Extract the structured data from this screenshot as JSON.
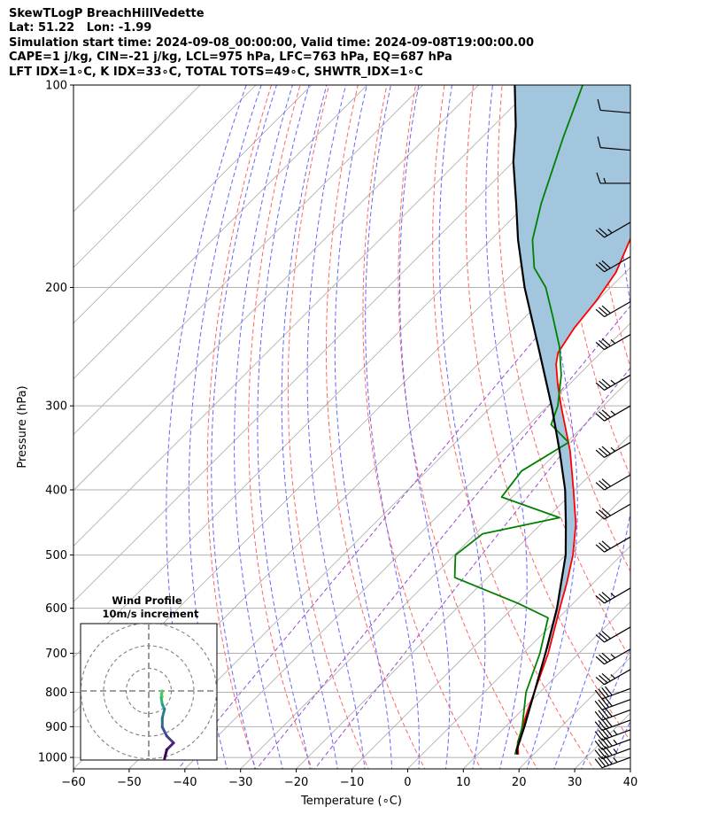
{
  "header": {
    "line1": "SkewTLogP BreachHillVedette",
    "line2": "Lat: 51.22   Lon: -1.99",
    "line3": "Simulation start time: 2024-09-08_00:00:00, Valid time: 2024-09-08T19:00:00.00",
    "line4": "CAPE=1 j/kg, CIN=-21 j/kg, LCL=975 hPa, LFC=763 hPa, EQ=687 hPa",
    "line5": "LFT IDX=1∘C, K IDX=33∘C, TOTAL TOTS=49∘C, SHWTR_IDX=1∘C"
  },
  "colors": {
    "temperature": "#ff0000",
    "dewpoint": "#008000",
    "parcel": "#000000",
    "cape_fill": "#a3c6df",
    "dry_adiabat": "#ff6666",
    "moist_adiabat": "#6666ff",
    "mixing_ratio": "#9b4dca",
    "isotherm": "#aaaaaa",
    "gridline": "#b0b0b0"
  },
  "chart_data": {
    "type": "skewt",
    "title": "SkewTLogP BreachHillVedette",
    "xlabel": "Temperature (∘C)",
    "ylabel": "Pressure (hPa)",
    "xlim": [
      -60,
      40
    ],
    "ylim": [
      1040,
      100
    ],
    "y_scale": "log",
    "x_ticks": [
      -60,
      -50,
      -40,
      -30,
      -20,
      -10,
      0,
      10,
      20,
      30,
      40
    ],
    "y_ticks": [
      100,
      200,
      300,
      400,
      500,
      600,
      700,
      800,
      900,
      1000
    ],
    "grid": true,
    "temperature": [
      {
        "p": 990,
        "t": 17.3
      },
      {
        "p": 950,
        "t": 15.0
      },
      {
        "p": 850,
        "t": 11.0
      },
      {
        "p": 800,
        "t": 9.0
      },
      {
        "p": 700,
        "t": 4.5
      },
      {
        "p": 600,
        "t": -1.5
      },
      {
        "p": 550,
        "t": -4.8
      },
      {
        "p": 500,
        "t": -8.7
      },
      {
        "p": 450,
        "t": -13.7
      },
      {
        "p": 400,
        "t": -20.3
      },
      {
        "p": 350,
        "t": -27.9
      },
      {
        "p": 300,
        "t": -37.6
      },
      {
        "p": 280,
        "t": -41.8
      },
      {
        "p": 260,
        "t": -46.0
      },
      {
        "p": 250,
        "t": -47.7
      },
      {
        "p": 230,
        "t": -49.2
      },
      {
        "p": 210,
        "t": -50.1
      },
      {
        "p": 190,
        "t": -51.7
      },
      {
        "p": 170,
        "t": -55.0
      },
      {
        "p": 150,
        "t": -58.8
      },
      {
        "p": 130,
        "t": -63.5
      },
      {
        "p": 120,
        "t": -66.6
      },
      {
        "p": 110,
        "t": -70.0
      },
      {
        "p": 100,
        "t": -73.2
      }
    ],
    "dewpoint": [
      {
        "p": 990,
        "t": 16.7
      },
      {
        "p": 900,
        "t": 13.0
      },
      {
        "p": 800,
        "t": 7.5
      },
      {
        "p": 700,
        "t": 3.0
      },
      {
        "p": 620,
        "t": -1.9
      },
      {
        "p": 590,
        "t": -9.9
      },
      {
        "p": 540,
        "t": -25.9
      },
      {
        "p": 500,
        "t": -29.8
      },
      {
        "p": 465,
        "t": -28.7
      },
      {
        "p": 440,
        "t": -17.8
      },
      {
        "p": 410,
        "t": -31.9
      },
      {
        "p": 375,
        "t": -33.0
      },
      {
        "p": 340,
        "t": -29.7
      },
      {
        "p": 320,
        "t": -36.0
      },
      {
        "p": 300,
        "t": -38.2
      },
      {
        "p": 270,
        "t": -43.1
      },
      {
        "p": 245,
        "t": -48.5
      },
      {
        "p": 220,
        "t": -55.4
      },
      {
        "p": 200,
        "t": -61.6
      },
      {
        "p": 187,
        "t": -67.2
      },
      {
        "p": 170,
        "t": -72.5
      },
      {
        "p": 150,
        "t": -77.5
      },
      {
        "p": 120,
        "t": -85.3
      },
      {
        "p": 100,
        "t": -91.3
      }
    ],
    "parcel": [
      {
        "p": 990,
        "t": 17.1
      },
      {
        "p": 975,
        "t": 16.2
      },
      {
        "p": 900,
        "t": 13.4
      },
      {
        "p": 800,
        "t": 9.0
      },
      {
        "p": 700,
        "t": 4.0
      },
      {
        "p": 600,
        "t": -2.0
      },
      {
        "p": 500,
        "t": -10.0
      },
      {
        "p": 450,
        "t": -15.5
      },
      {
        "p": 400,
        "t": -21.8
      },
      {
        "p": 350,
        "t": -29.8
      },
      {
        "p": 300,
        "t": -39.3
      },
      {
        "p": 250,
        "t": -51.0
      },
      {
        "p": 200,
        "t": -65.4
      },
      {
        "p": 170,
        "t": -75.1
      },
      {
        "p": 150,
        "t": -82.0
      },
      {
        "p": 130,
        "t": -90.0
      },
      {
        "p": 115,
        "t": -96.0
      },
      {
        "p": 100,
        "t": -103.5
      }
    ],
    "wind_barbs": [
      {
        "p": 1000,
        "speed_kt": 45,
        "dir_deg": 250
      },
      {
        "p": 970,
        "speed_kt": 45,
        "dir_deg": 250
      },
      {
        "p": 940,
        "speed_kt": 45,
        "dir_deg": 250
      },
      {
        "p": 910,
        "speed_kt": 45,
        "dir_deg": 250
      },
      {
        "p": 880,
        "speed_kt": 40,
        "dir_deg": 250
      },
      {
        "p": 850,
        "speed_kt": 40,
        "dir_deg": 250
      },
      {
        "p": 820,
        "speed_kt": 40,
        "dir_deg": 250
      },
      {
        "p": 790,
        "speed_kt": 40,
        "dir_deg": 250
      },
      {
        "p": 740,
        "speed_kt": 35,
        "dir_deg": 240
      },
      {
        "p": 690,
        "speed_kt": 35,
        "dir_deg": 240
      },
      {
        "p": 640,
        "speed_kt": 30,
        "dir_deg": 240
      },
      {
        "p": 560,
        "speed_kt": 35,
        "dir_deg": 240
      },
      {
        "p": 470,
        "speed_kt": 30,
        "dir_deg": 240
      },
      {
        "p": 420,
        "speed_kt": 30,
        "dir_deg": 240
      },
      {
        "p": 380,
        "speed_kt": 30,
        "dir_deg": 240
      },
      {
        "p": 340,
        "speed_kt": 35,
        "dir_deg": 240
      },
      {
        "p": 300,
        "speed_kt": 35,
        "dir_deg": 240
      },
      {
        "p": 270,
        "speed_kt": 35,
        "dir_deg": 240
      },
      {
        "p": 235,
        "speed_kt": 35,
        "dir_deg": 240
      },
      {
        "p": 210,
        "speed_kt": 30,
        "dir_deg": 240
      },
      {
        "p": 180,
        "speed_kt": 30,
        "dir_deg": 240
      },
      {
        "p": 160,
        "speed_kt": 25,
        "dir_deg": 240
      },
      {
        "p": 140,
        "speed_kt": 15,
        "dir_deg": 270
      },
      {
        "p": 125,
        "speed_kt": 10,
        "dir_deg": 275
      },
      {
        "p": 110,
        "speed_kt": 10,
        "dir_deg": 275
      }
    ],
    "hodograph": {
      "title": "Wind Profile",
      "subtitle": "10m/s increment",
      "rings_ms": [
        10,
        20,
        30
      ],
      "points": [
        {
          "u": 7.0,
          "v": -30.0
        },
        {
          "u": 8.0,
          "v": -26.0
        },
        {
          "u": 11.0,
          "v": -23.0
        },
        {
          "u": 8.0,
          "v": -20.0
        },
        {
          "u": 6.0,
          "v": -16.0
        },
        {
          "u": 6.0,
          "v": -12.0
        },
        {
          "u": 7.0,
          "v": -8.0
        },
        {
          "u": 6.0,
          "v": -6.0
        },
        {
          "u": 5.5,
          "v": -3.0
        },
        {
          "u": 6.0,
          "v": 0.0
        },
        {
          "u": 5.5,
          "v": -1.5
        },
        {
          "u": 6.0,
          "v": -2.5
        },
        {
          "u": 5.8,
          "v": -3.2
        }
      ]
    }
  }
}
